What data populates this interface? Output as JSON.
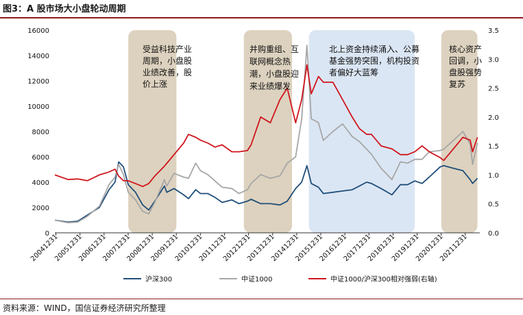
{
  "title": "图3：A 股市场大小盘轮动周期",
  "source": "资料来源：WIND，国信证券经济研究所整理",
  "chart_data": {
    "type": "line",
    "title": "图3：A 股市场大小盘轮动周期",
    "x_ticks": [
      "20041231",
      "20051231",
      "20061231",
      "20071231",
      "20081231",
      "20091231",
      "20101231",
      "20111231",
      "20121231",
      "20131231",
      "20141231",
      "20151231",
      "20161231",
      "20171231",
      "20181231",
      "20191231",
      "20201231",
      "20211231"
    ],
    "x_range": [
      2004.95,
      2022.6
    ],
    "ylim_left": [
      0,
      16000
    ],
    "yticks_left": [
      "0",
      "2000",
      "4000",
      "6000",
      "8000",
      "10000",
      "12000",
      "14000",
      "16000"
    ],
    "ylim_right": [
      0.0,
      3.5
    ],
    "yticks_right": [
      "0.0",
      "0.5",
      "1.0",
      "1.5",
      "2.0",
      "2.5",
      "3.0",
      "3.5"
    ],
    "grid": false,
    "legend_position": "bottom",
    "annotations": [
      {
        "text": [
          "受益科技产业",
          "周期，小盘股",
          "业绩改善，股",
          "价上涨"
        ],
        "x_start": 2008.0,
        "x_end": 2010.0,
        "color": "#ddd2bf"
      },
      {
        "text": [
          "并购重组、互",
          "联网概念热",
          "潮，小盘股迎",
          "来业绩爆发"
        ],
        "x_start": 2012.8,
        "x_end": 2014.8,
        "color": "#ddd2bf"
      },
      {
        "text": [
          "北上资金持续涌入、公募",
          "基金强势突围，机构投资",
          "者偏好大蓝筹"
        ],
        "x_start": 2015.5,
        "x_end": 2019.9,
        "color": "#dbe6f4"
      },
      {
        "text": [
          "核心资产",
          "回调，小",
          "盘股强势",
          "复苏"
        ],
        "x_start": 2021.0,
        "x_end": 2022.5,
        "color": "#ddd2bf"
      }
    ],
    "series": [
      {
        "name": "沪深300",
        "axis": "left",
        "color": "#1f4e79",
        "x": [
          2004.95,
          2005.5,
          2005.9,
          2006.3,
          2006.8,
          2007.2,
          2007.45,
          2007.6,
          2007.8,
          2008.0,
          2008.3,
          2008.6,
          2008.85,
          2009.1,
          2009.5,
          2009.6,
          2009.9,
          2010.3,
          2010.5,
          2010.8,
          2011.0,
          2011.3,
          2011.6,
          2011.9,
          2012.3,
          2012.6,
          2012.95,
          2013.1,
          2013.5,
          2013.9,
          2014.3,
          2014.6,
          2014.95,
          2015.2,
          2015.42,
          2015.6,
          2015.9,
          2016.1,
          2016.5,
          2016.9,
          2017.3,
          2017.6,
          2017.9,
          2018.1,
          2018.5,
          2018.95,
          2019.3,
          2019.6,
          2019.9,
          2020.2,
          2020.5,
          2020.95,
          2021.1,
          2021.5,
          2021.9,
          2022.2,
          2022.3,
          2022.5
        ],
        "values": [
          1000,
          850,
          920,
          1400,
          2000,
          3400,
          4000,
          5600,
          5200,
          3800,
          3200,
          2200,
          1800,
          2500,
          3700,
          3200,
          3500,
          3000,
          2700,
          3400,
          3100,
          3100,
          2800,
          2400,
          2600,
          2300,
          2500,
          2650,
          2300,
          2300,
          2200,
          2500,
          3500,
          4000,
          5300,
          3900,
          3600,
          3100,
          3200,
          3300,
          3400,
          3700,
          4000,
          3900,
          3500,
          3000,
          3800,
          3800,
          4100,
          3900,
          4400,
          5200,
          5300,
          5100,
          4900,
          4200,
          3900,
          4300
        ]
      },
      {
        "name": "中证1000",
        "axis": "left",
        "color": "#a6a6a6",
        "x": [
          2004.95,
          2005.5,
          2005.9,
          2006.3,
          2006.8,
          2007.2,
          2007.45,
          2007.6,
          2007.8,
          2008.0,
          2008.3,
          2008.6,
          2008.85,
          2009.1,
          2009.5,
          2009.6,
          2009.9,
          2010.3,
          2010.5,
          2010.8,
          2011.0,
          2011.3,
          2011.6,
          2011.9,
          2012.3,
          2012.6,
          2012.95,
          2013.1,
          2013.5,
          2013.9,
          2014.3,
          2014.6,
          2014.95,
          2015.2,
          2015.42,
          2015.6,
          2015.9,
          2016.1,
          2016.5,
          2016.9,
          2017.3,
          2017.6,
          2017.9,
          2018.1,
          2018.5,
          2018.95,
          2019.3,
          2019.6,
          2019.9,
          2020.2,
          2020.5,
          2020.95,
          2021.1,
          2021.5,
          2021.9,
          2022.2,
          2022.3,
          2022.5
        ],
        "values": [
          1000,
          800,
          850,
          1300,
          2100,
          3800,
          4400,
          5400,
          4600,
          3200,
          2600,
          1700,
          1500,
          2400,
          4200,
          3700,
          4700,
          4400,
          4300,
          5500,
          4900,
          4600,
          4100,
          3600,
          3500,
          3100,
          3400,
          3900,
          4600,
          4300,
          4500,
          5500,
          6000,
          9000,
          14800,
          9000,
          8700,
          7300,
          8000,
          8600,
          7600,
          7200,
          6600,
          6200,
          5100,
          4200,
          5600,
          5500,
          5800,
          5800,
          6400,
          6500,
          6600,
          7300,
          8000,
          7000,
          5400,
          7100
        ]
      },
      {
        "name": "中证1000/沪深300相对强弱(右轴)",
        "axis": "right",
        "color": "#d0141c",
        "x": [
          2004.95,
          2005.5,
          2005.9,
          2006.3,
          2006.8,
          2007.2,
          2007.45,
          2007.6,
          2007.8,
          2008.0,
          2008.3,
          2008.6,
          2008.85,
          2009.1,
          2009.5,
          2009.6,
          2009.9,
          2010.3,
          2010.5,
          2010.8,
          2011.0,
          2011.3,
          2011.6,
          2011.9,
          2012.3,
          2012.6,
          2012.95,
          2013.1,
          2013.5,
          2013.9,
          2014.3,
          2014.6,
          2014.95,
          2015.2,
          2015.42,
          2015.6,
          2015.9,
          2016.1,
          2016.5,
          2016.9,
          2017.3,
          2017.6,
          2017.9,
          2018.1,
          2018.5,
          2018.95,
          2019.3,
          2019.6,
          2019.9,
          2020.2,
          2020.5,
          2020.95,
          2021.1,
          2021.5,
          2021.9,
          2022.2,
          2022.3,
          2022.5
        ],
        "values": [
          1.0,
          0.92,
          0.93,
          0.9,
          1.0,
          1.05,
          1.1,
          0.98,
          0.9,
          0.9,
          0.85,
          0.8,
          0.85,
          0.98,
          1.15,
          1.2,
          1.35,
          1.55,
          1.7,
          1.65,
          1.6,
          1.55,
          1.48,
          1.52,
          1.4,
          1.4,
          1.42,
          1.52,
          2.0,
          1.9,
          2.3,
          2.5,
          1.9,
          2.3,
          2.9,
          2.4,
          2.7,
          2.6,
          2.6,
          2.3,
          2.0,
          1.8,
          1.7,
          1.7,
          1.5,
          1.45,
          1.35,
          1.35,
          1.4,
          1.5,
          1.4,
          1.3,
          1.25,
          1.45,
          1.65,
          1.6,
          1.4,
          1.65
        ]
      }
    ]
  }
}
